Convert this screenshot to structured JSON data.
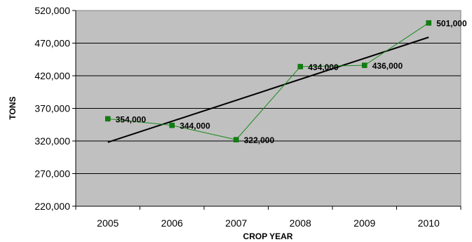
{
  "chart_data": {
    "type": "line",
    "title": "",
    "xlabel": "CROP YEAR",
    "ylabel": "TONS",
    "categories": [
      "2005",
      "2006",
      "2007",
      "2008",
      "2009",
      "2010"
    ],
    "series": [
      {
        "values": [
          354000,
          344000,
          322000,
          434000,
          436000,
          501000
        ],
        "data_labels": [
          "354,000",
          "344,000",
          "322,000",
          "434,000",
          "436,000",
          "501,000"
        ],
        "color": "#1a8a1a",
        "marker": "square"
      }
    ],
    "trendline": {
      "type": "linear",
      "start": 318000,
      "end": 479000,
      "color": "#000000"
    },
    "y_ticks": [
      "220,000",
      "270,000",
      "320,000",
      "370,000",
      "420,000",
      "470,000",
      "520,000"
    ],
    "ylim": [
      220000,
      520000
    ],
    "grid": true,
    "plot_background": "#c0c0c0",
    "legend": "none"
  }
}
